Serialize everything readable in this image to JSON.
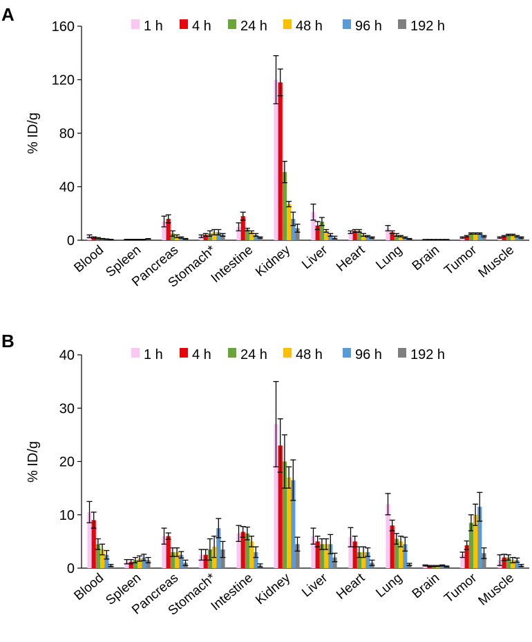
{
  "figure": {
    "series_names": [
      "1 h",
      "4 h",
      "24 h",
      "48 h",
      "96 h",
      "192 h"
    ],
    "series_colors": [
      "#f9c7f2",
      "#e6050a",
      "#6ba43a",
      "#fbc100",
      "#5b9bd5",
      "#7f7f7f"
    ]
  },
  "chart_data": [
    {
      "panel": "A",
      "type": "bar",
      "ylabel": "% ID/g",
      "ylim": [
        0,
        160
      ],
      "yticks": [
        0,
        40,
        80,
        120,
        160
      ],
      "categories": [
        "Blood",
        "Spleen",
        "Pancreas",
        "Stomach*",
        "Intestine",
        "Kidney",
        "Liver",
        "Heart",
        "Lung",
        "Brain",
        "Tumor",
        "Muscle"
      ],
      "series": [
        {
          "name": "1 h",
          "values": [
            3,
            0.5,
            14,
            3,
            10,
            120,
            21,
            6,
            9,
            0.5,
            2,
            2
          ],
          "errors": [
            1,
            0.2,
            4,
            1,
            3,
            18,
            6,
            1,
            2,
            0.1,
            0.5,
            0.5
          ]
        },
        {
          "name": "4 h",
          "values": [
            2,
            0.5,
            16,
            4,
            18,
            118,
            11,
            7,
            6,
            0.5,
            3,
            3
          ],
          "errors": [
            0.5,
            0.2,
            3,
            1,
            3,
            10,
            3,
            1,
            1,
            0.1,
            0.5,
            0.5
          ]
        },
        {
          "name": "24 h",
          "values": [
            1.5,
            0.5,
            5,
            5,
            8,
            51,
            14,
            7,
            4,
            0.5,
            5,
            4
          ],
          "errors": [
            0.5,
            0.2,
            2,
            2,
            1,
            8,
            3,
            1,
            1,
            0.1,
            0.5,
            0.5
          ]
        },
        {
          "name": "48 h",
          "values": [
            1,
            0.5,
            3,
            6,
            6,
            27,
            7,
            4,
            3,
            0.5,
            5,
            4
          ],
          "errors": [
            0.3,
            0.2,
            1,
            2,
            1,
            2,
            1,
            1,
            0.5,
            0.1,
            0.5,
            0.5
          ]
        },
        {
          "name": "96 h",
          "values": [
            0.8,
            0.5,
            2,
            6,
            4,
            16,
            4,
            3,
            2,
            0.5,
            5,
            3
          ],
          "errors": [
            0.2,
            0.2,
            0.5,
            2,
            1,
            5,
            1,
            0.5,
            0.5,
            0.1,
            0.5,
            0.5
          ]
        },
        {
          "name": "192 h",
          "values": [
            0.5,
            1,
            1,
            4,
            2,
            9,
            2,
            2,
            1,
            0.5,
            3,
            2
          ],
          "errors": [
            0.2,
            0.2,
            0.3,
            1,
            0.5,
            3,
            1,
            0.5,
            0.3,
            0.1,
            0.5,
            0.5
          ]
        }
      ]
    },
    {
      "panel": "B",
      "type": "bar",
      "ylabel": "% ID/g",
      "ylim": [
        0,
        40
      ],
      "yticks": [
        0,
        10,
        20,
        30,
        40
      ],
      "categories": [
        "Blood",
        "Spleen",
        "Pancreas",
        "Stomach*",
        "Intestine",
        "Kidney",
        "Liver",
        "Heart",
        "Lung",
        "Brain",
        "Tumor",
        "Muscle"
      ],
      "series": [
        {
          "name": "1 h",
          "values": [
            10.5,
            1.2,
            6,
            2.5,
            6.5,
            27,
            6,
            5.8,
            12,
            0.5,
            2.5,
            1.5
          ],
          "errors": [
            2,
            0.4,
            1.5,
            1,
            1.5,
            8,
            1.5,
            1.8,
            2,
            0.1,
            0.5,
            1
          ]
        },
        {
          "name": "4 h",
          "values": [
            9,
            1.2,
            6,
            2.5,
            6.8,
            23,
            5,
            5,
            8,
            0.4,
            4.3,
            2
          ],
          "errors": [
            1.5,
            0.4,
            0.6,
            1,
            1,
            5,
            1,
            1,
            1,
            0.1,
            0.8,
            0.6
          ]
        },
        {
          "name": "24 h",
          "values": [
            4.5,
            1.5,
            3,
            3.5,
            6.5,
            20,
            4.5,
            3,
            5.5,
            0.4,
            8.5,
            2
          ],
          "errors": [
            1,
            0.5,
            0.8,
            2,
            1.2,
            5,
            1,
            1,
            1,
            0.1,
            1.5,
            0.5
          ]
        },
        {
          "name": "48 h",
          "values": [
            3.5,
            1.8,
            3,
            4,
            5,
            17,
            4.5,
            3,
            5,
            0.4,
            10,
            1.5
          ],
          "errors": [
            1,
            0.5,
            0.8,
            2,
            1,
            2,
            1,
            1,
            1,
            0.1,
            2,
            0.5
          ]
        },
        {
          "name": "96 h",
          "values": [
            2.5,
            2,
            2.5,
            7.5,
            3,
            16.5,
            4.5,
            3,
            4.5,
            0.5,
            11.5,
            1.5
          ],
          "errors": [
            0.8,
            0.6,
            0.6,
            1.8,
            1,
            3.8,
            1.8,
            0.8,
            1.3,
            0.1,
            2.7,
            0.4
          ]
        },
        {
          "name": "192 h",
          "values": [
            0.5,
            1.5,
            1,
            3.5,
            0.5,
            4.5,
            2,
            1,
            0.7,
            0.3,
            2.8,
            0.5
          ],
          "errors": [
            0.2,
            0.5,
            0.5,
            1.5,
            0.3,
            1.3,
            0.8,
            0.5,
            0.2,
            0.1,
            1,
            0.2
          ]
        }
      ]
    }
  ]
}
